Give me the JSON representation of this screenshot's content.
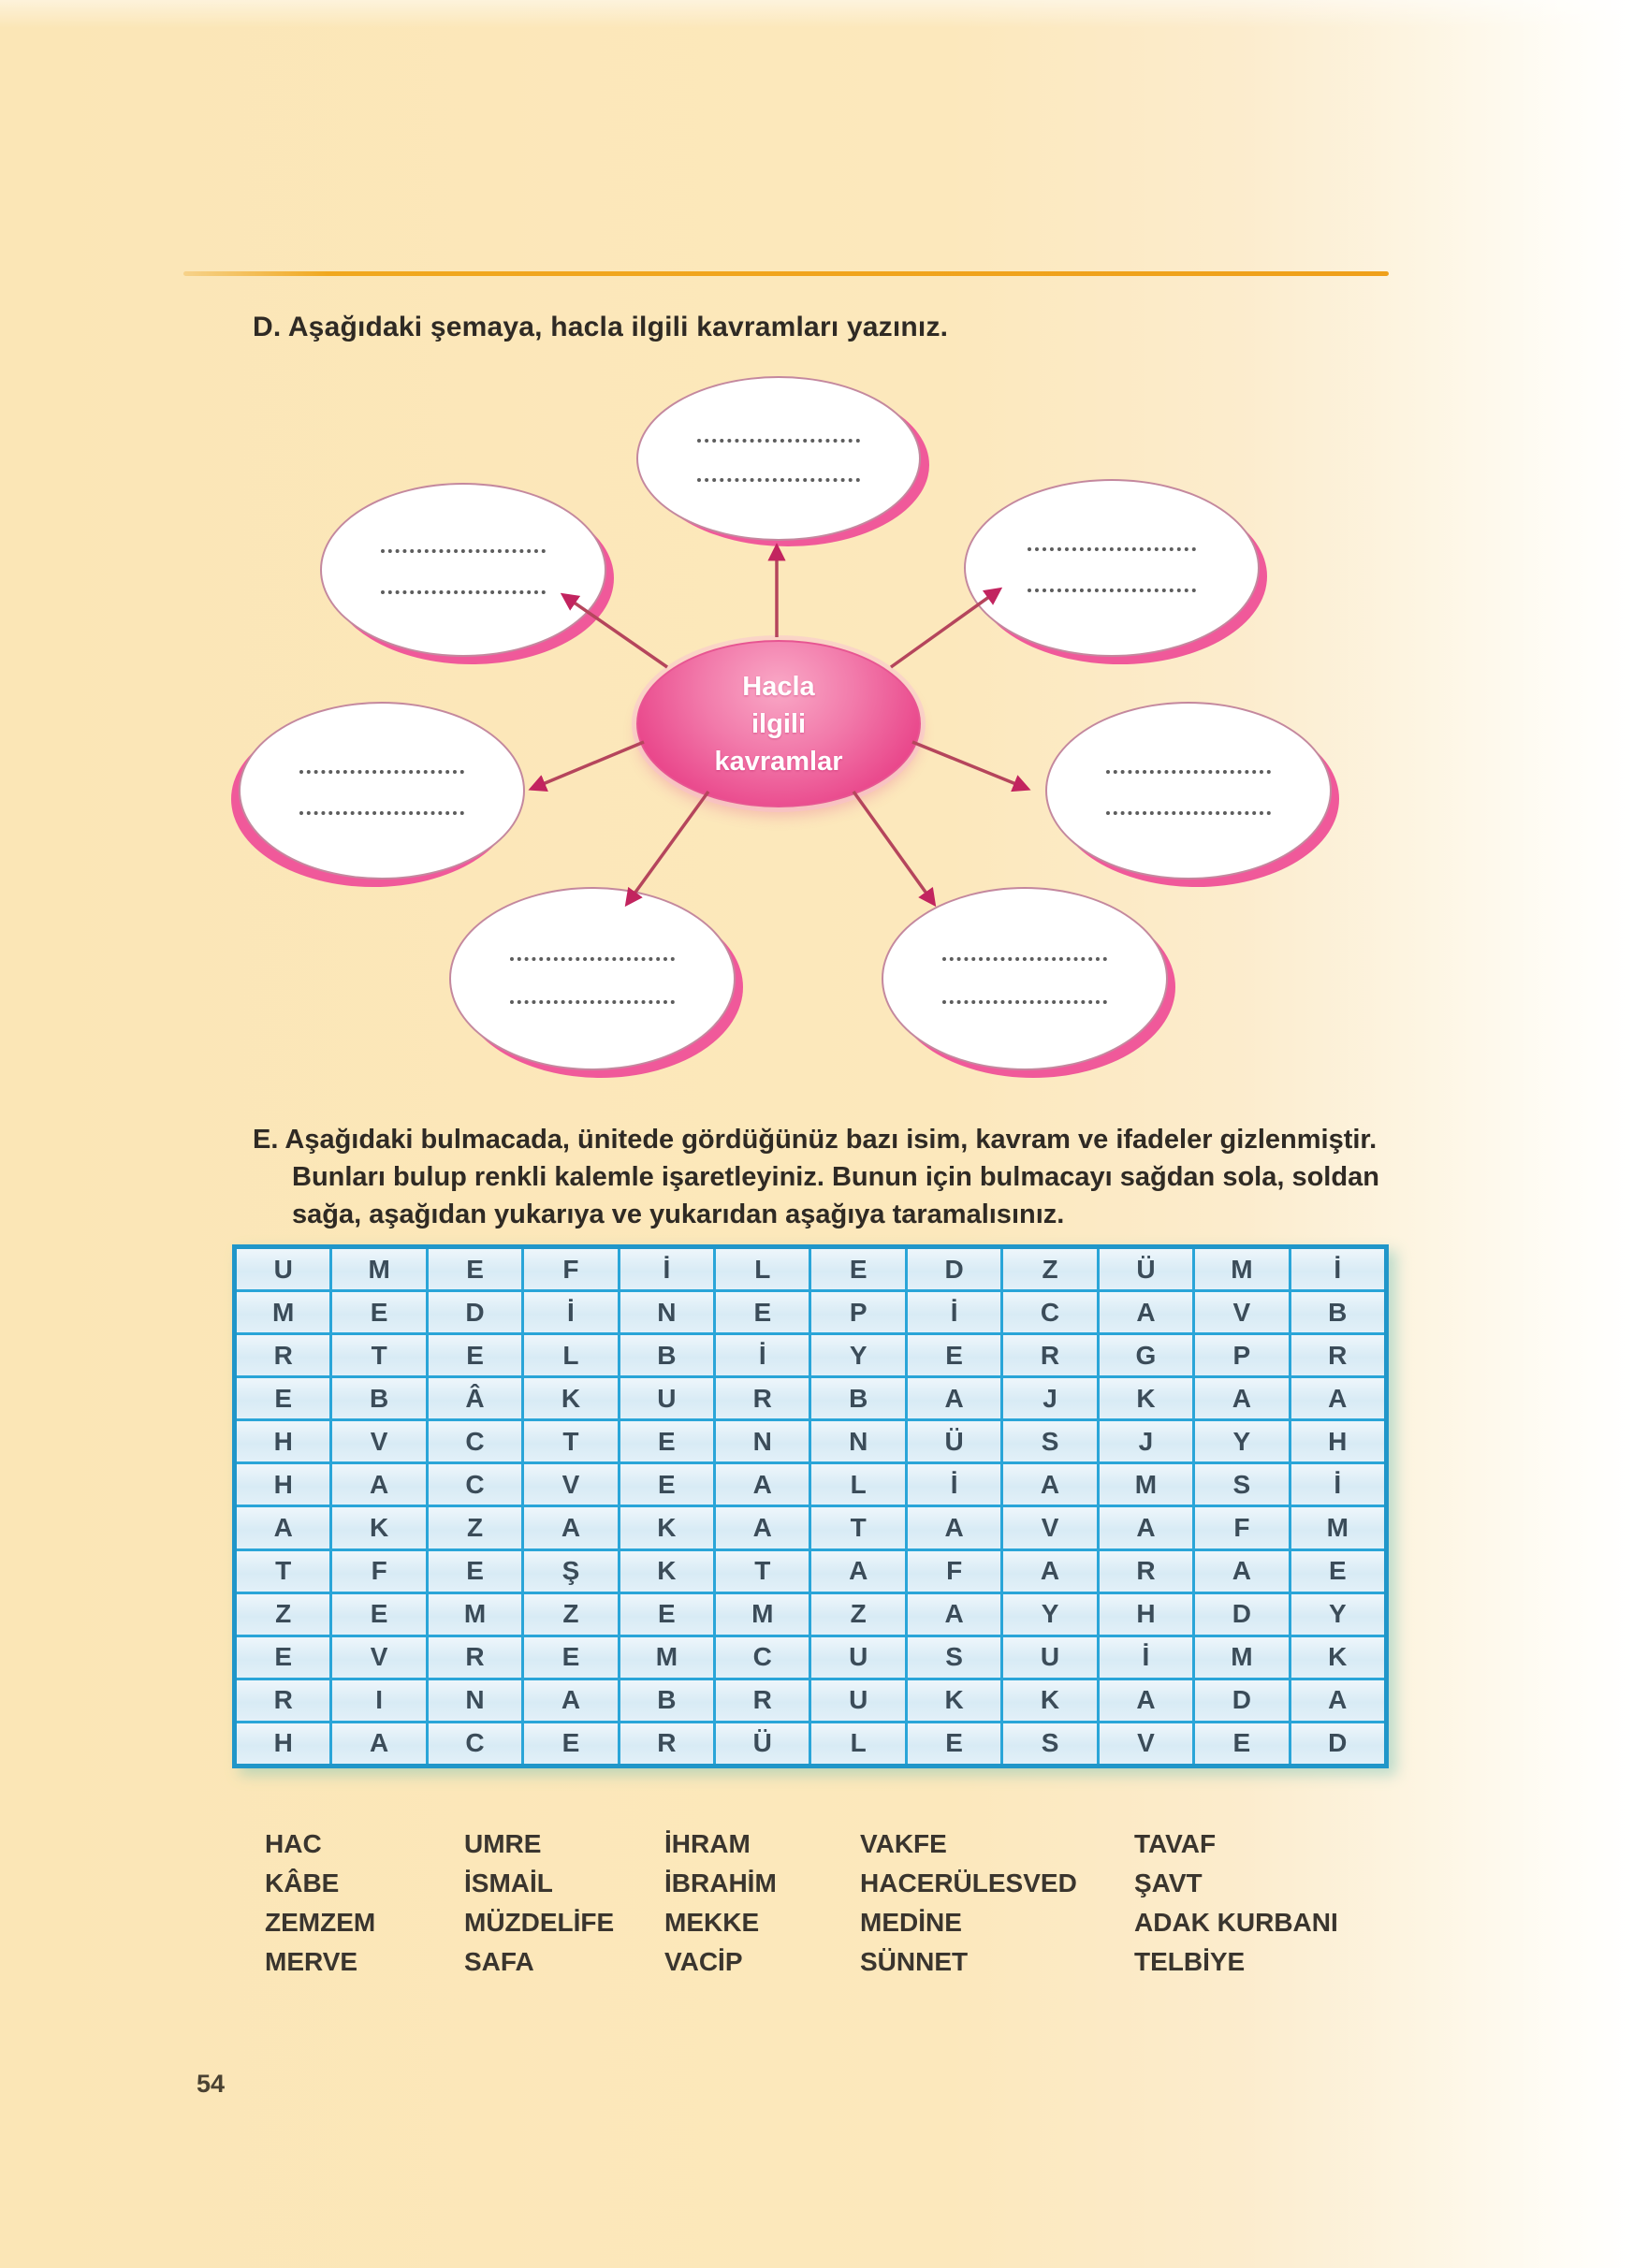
{
  "page": {
    "number": "54"
  },
  "section_d": {
    "title": "D. Aşağıdaki şemaya, hacla ilgili kavramları yazınız.",
    "diagram": {
      "center_label_lines": [
        "Hacla",
        "ilgili",
        "kavramlar"
      ],
      "center_label": "Hacla ilgili kavramlar",
      "nodes": [
        {
          "position": "top-center",
          "blank_lines": 2
        },
        {
          "position": "top-left",
          "blank_lines": 2
        },
        {
          "position": "top-right",
          "blank_lines": 2
        },
        {
          "position": "middle-left",
          "blank_lines": 2
        },
        {
          "position": "middle-right",
          "blank_lines": 2
        },
        {
          "position": "bottom-left",
          "blank_lines": 2
        },
        {
          "position": "bottom-right",
          "blank_lines": 2
        }
      ],
      "arrow_count": 7
    }
  },
  "section_e": {
    "title": "E. Aşağıdaki bulmacada, ünitede gördüğünüz bazı isim, kavram ve ifadeler gizlenmiştir. Bunları bulup renkli kalemle işaretleyiniz. Bunun için bulmacayı sağdan sola, soldan sağa, aşağıdan yukarıya ve yukarıdan aşağıya taramalısınız.",
    "title_lines": [
      "E. Aşağıdaki bulmacada, ünitede gördüğünüz bazı isim, kavram ve ifadeler gizlenmiştir.",
      "Bunları bulup renkli kalemle işaretleyiniz. Bunun için bulmacayı sağdan sola, soldan",
      "sağa, aşağıdan yukarıya ve yukarıdan aşağıya taramalısınız."
    ],
    "grid": {
      "rows": [
        [
          "U",
          "M",
          "E",
          "F",
          "İ",
          "L",
          "E",
          "D",
          "Z",
          "Ü",
          "M",
          "İ"
        ],
        [
          "M",
          "E",
          "D",
          "İ",
          "N",
          "E",
          "P",
          "İ",
          "C",
          "A",
          "V",
          "B"
        ],
        [
          "R",
          "T",
          "E",
          "L",
          "B",
          "İ",
          "Y",
          "E",
          "R",
          "G",
          "P",
          "R"
        ],
        [
          "E",
          "B",
          "Â",
          "K",
          "U",
          "R",
          "B",
          "A",
          "J",
          "K",
          "A",
          "A"
        ],
        [
          "H",
          "V",
          "C",
          "T",
          "E",
          "N",
          "N",
          "Ü",
          "S",
          "J",
          "Y",
          "H"
        ],
        [
          "H",
          "A",
          "C",
          "V",
          "E",
          "A",
          "L",
          "İ",
          "A",
          "M",
          "S",
          "İ"
        ],
        [
          "A",
          "K",
          "Z",
          "A",
          "K",
          "A",
          "T",
          "A",
          "V",
          "A",
          "F",
          "M"
        ],
        [
          "T",
          "F",
          "E",
          "Ş",
          "K",
          "T",
          "A",
          "F",
          "A",
          "R",
          "A",
          "E"
        ],
        [
          "Z",
          "E",
          "M",
          "Z",
          "E",
          "M",
          "Z",
          "A",
          "Y",
          "H",
          "D",
          "Y"
        ],
        [
          "E",
          "V",
          "R",
          "E",
          "M",
          "C",
          "U",
          "S",
          "U",
          "İ",
          "M",
          "K"
        ],
        [
          "R",
          "I",
          "N",
          "A",
          "B",
          "R",
          "U",
          "K",
          "K",
          "A",
          "D",
          "A"
        ],
        [
          "H",
          "A",
          "C",
          "E",
          "R",
          "Ü",
          "L",
          "E",
          "S",
          "V",
          "E",
          "D"
        ]
      ]
    },
    "word_columns": [
      [
        "HAC",
        "KÂBE",
        "ZEMZEM",
        "MERVE"
      ],
      [
        "UMRE",
        "İSMAİL",
        "MÜZDELİFE",
        "SAFA"
      ],
      [
        "İHRAM",
        "İBRAHİM",
        "MEKKE",
        "VACİP"
      ],
      [
        "VAKFE",
        "HACERÜLESVED",
        "MEDİNE",
        "SÜNNET"
      ],
      [
        "TAVAF",
        "ŞAVT",
        "ADAK KURBANI",
        "TELBİYE"
      ]
    ]
  },
  "colors": {
    "page_background": "#fbe7ba",
    "divider_orange": "#efa01a",
    "center_ellipse_pink": "#e9458a",
    "node_shadow_pink": "#f0599a",
    "arrow_red": "#b5455c",
    "grid_line_blue": "#2aa5d8",
    "grid_cell_blue": "#dceef7",
    "grid_letter_color": "#3b4c59",
    "body_text_color": "#2f2a24"
  }
}
